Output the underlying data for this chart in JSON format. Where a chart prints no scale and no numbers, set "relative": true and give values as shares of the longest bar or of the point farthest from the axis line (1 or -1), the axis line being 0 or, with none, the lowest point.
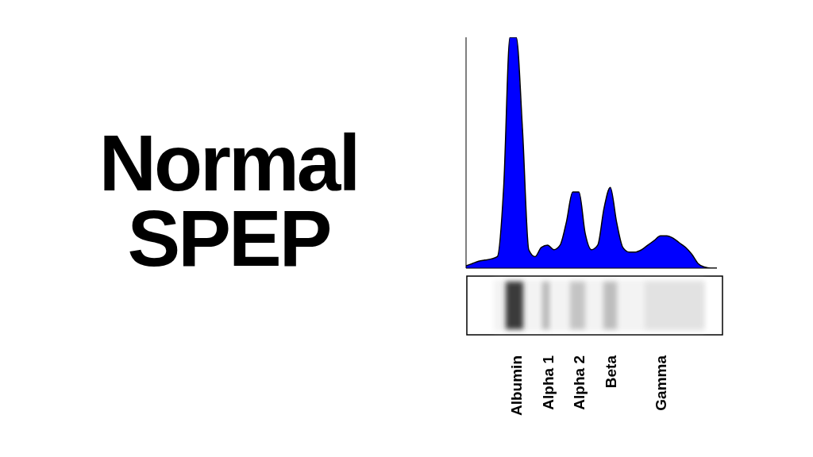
{
  "chart_data": {
    "type": "area",
    "title": "Normal SPEP",
    "relative": true,
    "categories": [
      null,
      null,
      null,
      null,
      null,
      null,
      null,
      null,
      "Albumin",
      null,
      null,
      null,
      null,
      "Alpha 1",
      null,
      null,
      null,
      null,
      "Alpha 2",
      null,
      null,
      null,
      null,
      "Beta",
      null,
      null,
      null,
      null,
      null,
      null,
      null,
      "Gamma",
      null,
      null,
      null,
      null,
      null,
      null,
      null,
      null,
      null
    ],
    "series": [
      {
        "color": "#0000ff",
        "values": [
          0.01,
          0.02,
          0.03,
          0.035,
          0.04,
          0.05,
          0.35,
          1,
          1,
          0.6,
          0.08,
          0.05,
          0.09,
          0.1,
          0.08,
          0.1,
          0.2,
          0.33,
          0.33,
          0.15,
          0.08,
          0.1,
          0.26,
          0.35,
          0.2,
          0.09,
          0.07,
          0.07,
          0.08,
          0.1,
          0.12,
          0.14,
          0.14,
          0.13,
          0.11,
          0.09,
          0.06,
          0.02,
          0.005,
          0,
          0
        ]
      }
    ]
  }
}
